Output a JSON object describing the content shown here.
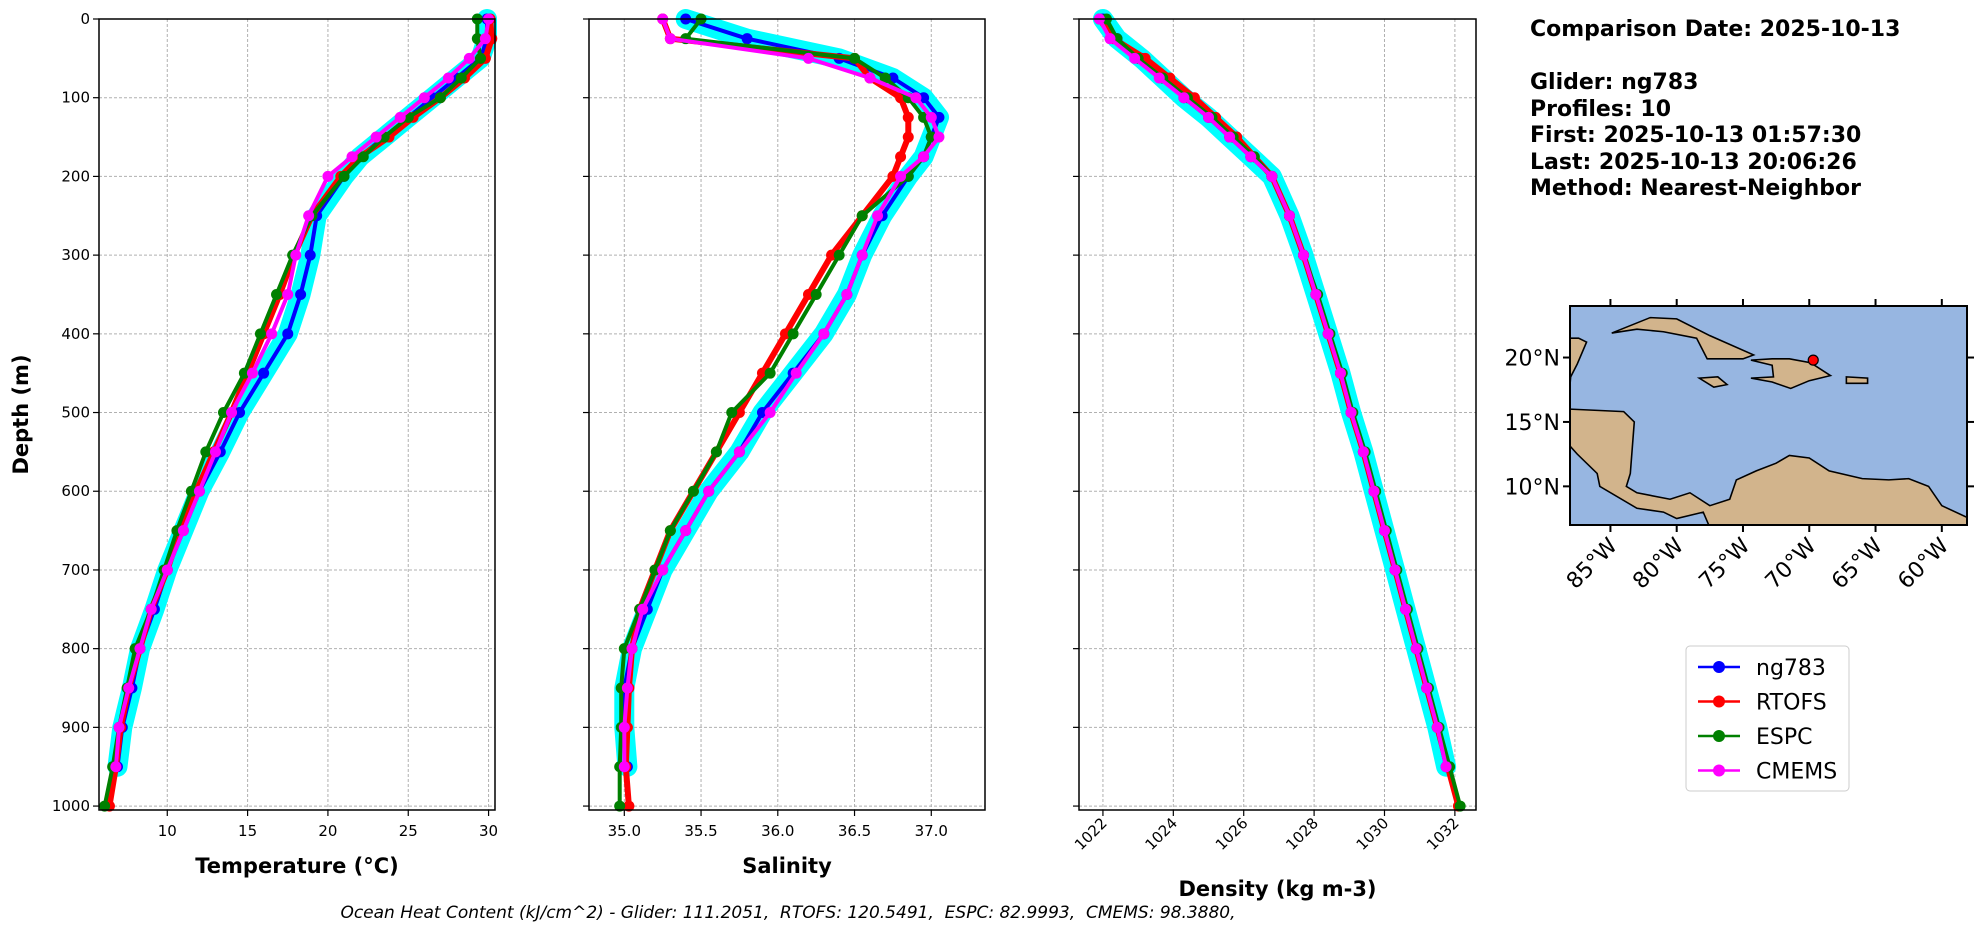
{
  "info": {
    "lines": [
      "Comparison Date: 2025-10-13",
      "Glider: ng783",
      "Profiles: 10",
      "First: 2025-10-13 01:57:30",
      "Last: 2025-10-13 20:06:26",
      "Method: Nearest-Neighbor"
    ]
  },
  "footer": "Ocean Heat Content (kJ/cm^2) - Glider: 111.2051,  RTOFS: 120.5491,  ESPC: 82.9993,  CMEMS: 98.3880,",
  "chart_data": [
    {
      "type": "line",
      "xlabel": "Temperature (°C)",
      "ylabel": "Depth (m)",
      "grid": true,
      "xlim": [
        5.75,
        30.4
      ],
      "xticks": [
        10,
        15,
        20,
        25,
        30
      ],
      "ylim": [
        1005,
        0
      ],
      "yticks": [
        0,
        100,
        200,
        300,
        400,
        500,
        600,
        700,
        800,
        900,
        1000
      ],
      "y": [
        0,
        25,
        50,
        75,
        100,
        125,
        150,
        175,
        200,
        250,
        300,
        350,
        400,
        450,
        500,
        550,
        600,
        650,
        700,
        750,
        800,
        850,
        900,
        950,
        1000
      ],
      "series": [
        {
          "name": "ng783",
          "color": "#0000ff",
          "envelope_color": "#00ffff",
          "values": [
            29.9,
            29.9,
            29.5,
            28,
            26.5,
            25,
            23.5,
            22,
            21,
            19.3,
            18.9,
            18.3,
            17.5,
            16,
            14.5,
            13.3,
            12,
            11,
            10,
            9.2,
            8.3,
            7.8,
            7.2,
            6.9,
            null
          ]
        },
        {
          "name": "RTOFS",
          "color": "#ff0000",
          "values": [
            30.1,
            30.2,
            29.8,
            28.5,
            27,
            25.3,
            23.8,
            22,
            20.8,
            19,
            17.9,
            17,
            16,
            15,
            14,
            12.9,
            11.8,
            10.8,
            10,
            9,
            8.3,
            7.6,
            7.1,
            6.8,
            6.4
          ]
        },
        {
          "name": "ESPC",
          "color": "#008000",
          "values": [
            29.3,
            29.3,
            29.5,
            28.3,
            27,
            25,
            23.5,
            22.2,
            21,
            19,
            17.8,
            16.8,
            15.8,
            14.8,
            13.5,
            12.4,
            11.5,
            10.6,
            9.8,
            9,
            8,
            7.5,
            7,
            6.6,
            6.1
          ]
        },
        {
          "name": "CMEMS",
          "color": "#ff00ff",
          "values": [
            30,
            29.8,
            28.8,
            27.5,
            26,
            24.5,
            23,
            21.5,
            20,
            18.8,
            18,
            17.5,
            16.5,
            15.3,
            14,
            13,
            12,
            11,
            10,
            9,
            8.3,
            7.6,
            7,
            6.8,
            null
          ]
        }
      ]
    },
    {
      "type": "line",
      "xlabel": "Salinity",
      "grid": true,
      "xlim": [
        34.77,
        37.35
      ],
      "xticks": [
        {
          "value": 35,
          "label": "35.0"
        },
        35.5,
        {
          "value": 36,
          "label": "36.0"
        },
        36.5,
        {
          "value": 37,
          "label": "37.0"
        }
      ],
      "ylim": [
        1005,
        0
      ],
      "yticks": [
        0,
        100,
        200,
        300,
        400,
        500,
        600,
        700,
        800,
        900,
        1000
      ],
      "y": [
        0,
        25,
        50,
        75,
        100,
        125,
        150,
        175,
        200,
        250,
        300,
        350,
        400,
        450,
        500,
        550,
        600,
        650,
        700,
        750,
        800,
        850,
        900,
        950,
        1000
      ],
      "series": [
        {
          "name": "ng783",
          "color": "#0000ff",
          "envelope_color": "#00ffff",
          "values": [
            35.4,
            35.8,
            36.4,
            36.75,
            36.95,
            37.05,
            37,
            36.95,
            36.85,
            36.68,
            36.55,
            36.45,
            36.3,
            36.1,
            35.9,
            35.75,
            35.55,
            35.4,
            35.25,
            35.15,
            35.05,
            35,
            35,
            35.02,
            null
          ]
        },
        {
          "name": "RTOFS",
          "color": "#ff0000",
          "values": [
            35.25,
            35.3,
            36.5,
            36.6,
            36.8,
            36.85,
            36.85,
            36.8,
            36.75,
            36.55,
            36.35,
            36.2,
            36.05,
            35.9,
            35.75,
            35.6,
            35.45,
            35.3,
            35.2,
            35.1,
            35.05,
            35.03,
            35.02,
            35.01,
            35.03
          ]
        },
        {
          "name": "ESPC",
          "color": "#008000",
          "values": [
            35.5,
            35.4,
            36.5,
            36.7,
            36.85,
            36.95,
            37,
            36.95,
            36.85,
            36.55,
            36.4,
            36.25,
            36.1,
            35.95,
            35.7,
            35.6,
            35.45,
            35.3,
            35.2,
            35.1,
            35,
            34.98,
            34.98,
            34.97,
            34.97
          ]
        },
        {
          "name": "CMEMS",
          "color": "#ff00ff",
          "values": [
            35.25,
            35.3,
            36.2,
            36.6,
            36.9,
            37,
            37.05,
            36.95,
            36.8,
            36.65,
            36.55,
            36.45,
            36.3,
            36.12,
            35.95,
            35.75,
            35.55,
            35.4,
            35.25,
            35.12,
            35.05,
            35.02,
            35,
            35,
            null
          ]
        }
      ]
    },
    {
      "type": "line",
      "xlabel": "Density (kg m-3)",
      "grid": true,
      "xtick_rotation": 45,
      "xlim": [
        1021.32,
        1032.6
      ],
      "xticks": [
        1022,
        1024,
        1026,
        1028,
        1030,
        1032
      ],
      "ylim": [
        1005,
        0
      ],
      "yticks": [
        0,
        100,
        200,
        300,
        400,
        500,
        600,
        700,
        800,
        900,
        1000
      ],
      "y": [
        0,
        25,
        50,
        75,
        100,
        125,
        150,
        175,
        200,
        250,
        300,
        350,
        400,
        450,
        500,
        550,
        600,
        650,
        700,
        750,
        800,
        850,
        900,
        950,
        1000
      ],
      "series": [
        {
          "name": "ng783",
          "color": "#0000ff",
          "envelope_color": "#00ffff",
          "values": [
            1022,
            1022.4,
            1023.1,
            1023.7,
            1024.3,
            1025,
            1025.6,
            1026.2,
            1026.8,
            1027.3,
            1027.7,
            1028.05,
            1028.4,
            1028.75,
            1029.05,
            1029.4,
            1029.7,
            1030,
            1030.3,
            1030.6,
            1030.9,
            1031.2,
            1031.5,
            1031.75,
            null
          ]
        },
        {
          "name": "RTOFS",
          "color": "#ff0000",
          "values": [
            1021.9,
            1022.3,
            1023.2,
            1023.9,
            1024.6,
            1025.2,
            1025.8,
            1026.3,
            1026.8,
            1027.3,
            1027.7,
            1028.05,
            1028.4,
            1028.75,
            1029.05,
            1029.4,
            1029.7,
            1030,
            1030.3,
            1030.6,
            1030.9,
            1031.2,
            1031.5,
            1031.8,
            1032.1
          ]
        },
        {
          "name": "ESPC",
          "color": "#008000",
          "values": [
            1022.1,
            1022.4,
            1023,
            1023.7,
            1024.4,
            1025.1,
            1025.7,
            1026.3,
            1026.8,
            1027.3,
            1027.7,
            1028.1,
            1028.45,
            1028.8,
            1029.1,
            1029.45,
            1029.75,
            1030.05,
            1030.35,
            1030.65,
            1030.95,
            1031.25,
            1031.55,
            1031.85,
            1032.15
          ]
        },
        {
          "name": "CMEMS",
          "color": "#ff00ff",
          "values": [
            1021.9,
            1022.2,
            1022.9,
            1023.6,
            1024.3,
            1025,
            1025.6,
            1026.2,
            1026.8,
            1027.3,
            1027.7,
            1028.05,
            1028.4,
            1028.75,
            1029.05,
            1029.4,
            1029.7,
            1030,
            1030.3,
            1030.6,
            1030.9,
            1031.2,
            1031.5,
            1031.75,
            null
          ]
        }
      ]
    }
  ],
  "map": {
    "lonlim": [
      -88.05,
      -58.1
    ],
    "latlim": [
      7,
      24
    ],
    "lonticks": [
      {
        "value": -85,
        "label": "85°W"
      },
      {
        "value": -80,
        "label": "80°W"
      },
      {
        "value": -75,
        "label": "75°W"
      },
      {
        "value": -70,
        "label": "70°W"
      },
      {
        "value": -65,
        "label": "65°W"
      },
      {
        "value": -60,
        "label": "60°W"
      }
    ],
    "latticks": [
      {
        "value": 10,
        "label": "10°N"
      },
      {
        "value": 15,
        "label": "15°N"
      },
      {
        "value": 20,
        "label": "20°N"
      }
    ],
    "ocean_color": "#97b6e1",
    "land_color": "#d2b48c",
    "glider": {
      "lon": -69.7,
      "lat": 19.8,
      "color": "#ff0000"
    }
  }
}
